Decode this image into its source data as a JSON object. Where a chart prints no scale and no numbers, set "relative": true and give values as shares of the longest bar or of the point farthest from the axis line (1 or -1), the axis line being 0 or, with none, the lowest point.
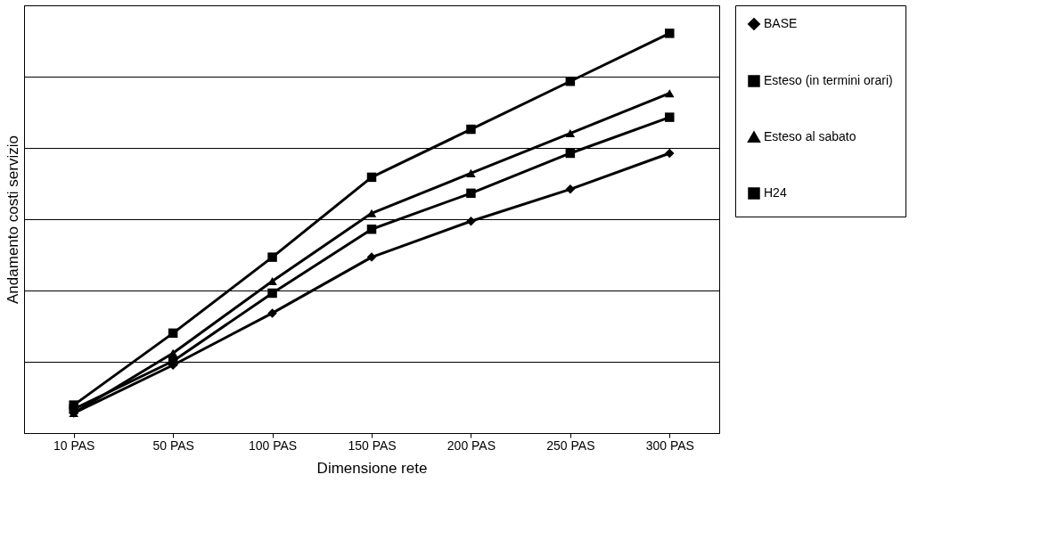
{
  "chart_data": {
    "type": "line",
    "xlabel": "Dimensione rete",
    "ylabel": "Andamento costi servizio",
    "categories": [
      "10 PAS",
      "50 PAS",
      "100 PAS",
      "150 PAS",
      "200 PAS",
      "250 PAS",
      "300 PAS"
    ],
    "relative": true,
    "grid": "y",
    "legend": "right",
    "line_style": "solid",
    "series": [
      {
        "name": "BASE",
        "color": "#000000",
        "marker": "diamond",
        "values": [
          0.05,
          0.17,
          0.3,
          0.44,
          0.53,
          0.61,
          0.7
        ]
      },
      {
        "name": "Esteso (in termini orari)",
        "color": "#000000",
        "marker": "square",
        "values": [
          0.06,
          0.18,
          0.35,
          0.51,
          0.6,
          0.7,
          0.79
        ]
      },
      {
        "name": "Esteso al sabato",
        "color": "#000000",
        "marker": "triangle",
        "values": [
          0.05,
          0.2,
          0.38,
          0.55,
          0.65,
          0.75,
          0.85
        ]
      },
      {
        "name": "H24",
        "color": "#000000",
        "marker": "square",
        "values": [
          0.07,
          0.25,
          0.44,
          0.64,
          0.76,
          0.88,
          1.0
        ]
      }
    ]
  }
}
